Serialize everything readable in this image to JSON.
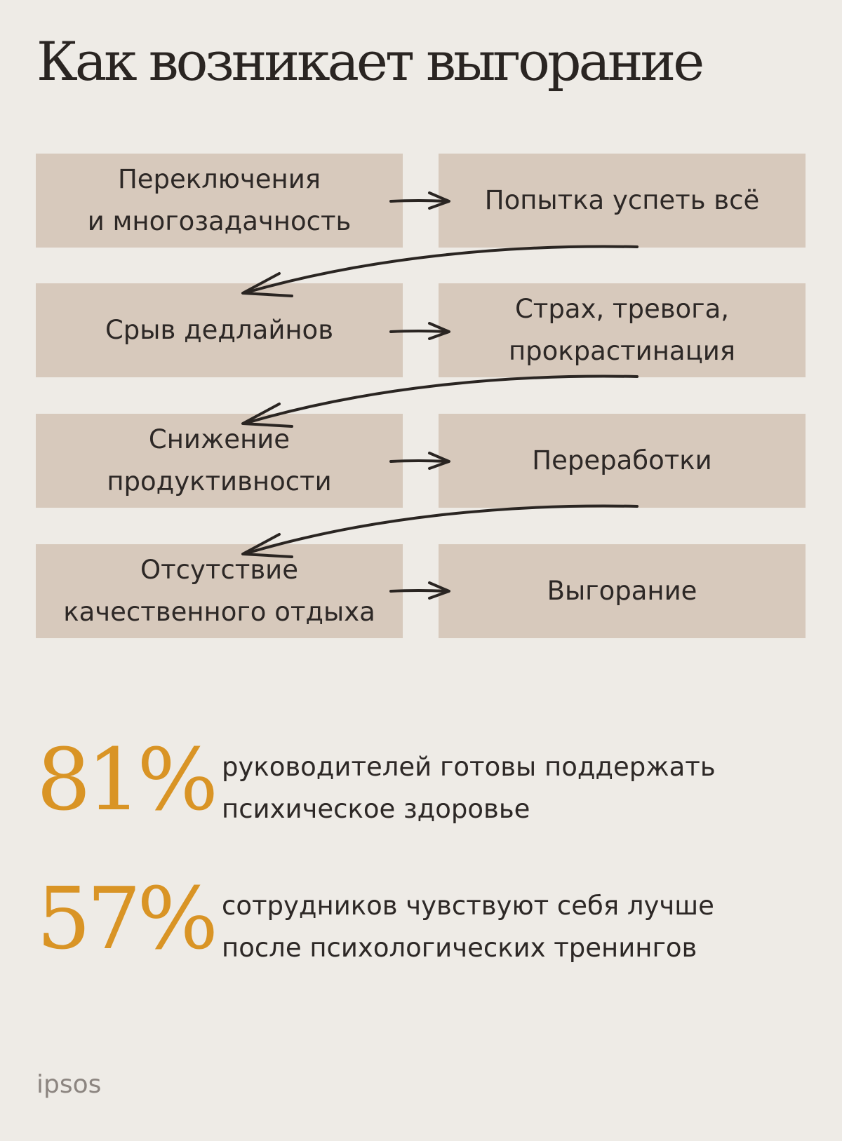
{
  "title": "Как возникает выгорание",
  "flow": {
    "rows": [
      {
        "left": "Переключения\nи многозадачность",
        "right": "Попытка успеть всё"
      },
      {
        "left": "Срыв дедлайнов",
        "right": "Страх, тревога,\nпрокрастинация"
      },
      {
        "left": "Снижение\nпродуктивности",
        "right": "Переработки"
      },
      {
        "left": "Отсутствие\nкачественного отдыха",
        "right": "Выгорание"
      }
    ]
  },
  "stats": [
    {
      "value": "81%",
      "text": "руководителей готовы поддержать\nпсихическое здоровье"
    },
    {
      "value": "57%",
      "text": "сотрудников чувствуют себя лучше\nпосле психологических тренингов"
    }
  ],
  "footer": {
    "source": "ipsos"
  },
  "colors": {
    "background": "#eeebe6",
    "box": "#d7c9bc",
    "accent": "#d99425",
    "text": "#2d2826"
  }
}
